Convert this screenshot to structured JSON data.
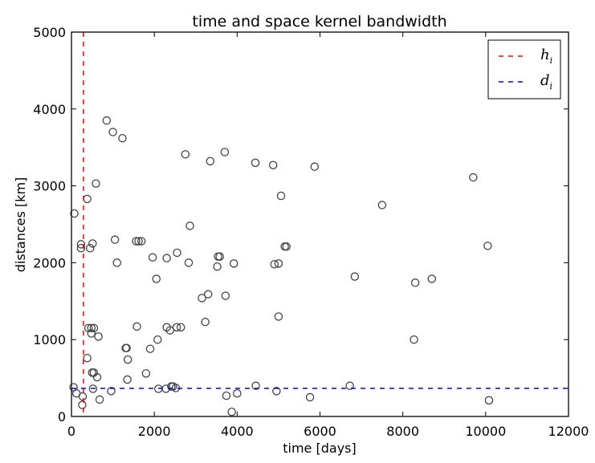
{
  "chart_data": {
    "type": "scatter",
    "title": "time and space kernel bandwidth",
    "xlabel": "time [days]",
    "ylabel": "distances [km]",
    "xlim": [
      0,
      12000
    ],
    "ylim": [
      0,
      5000
    ],
    "xticks": [
      0,
      2000,
      4000,
      6000,
      8000,
      10000,
      12000
    ],
    "yticks": [
      0,
      1000,
      2000,
      3000,
      4000,
      5000
    ],
    "grid": false,
    "legend_position": "top-right",
    "legend": [
      {
        "label": "h",
        "sub": "i",
        "color": "#ff0000",
        "style": "dashed"
      },
      {
        "label": "d",
        "sub": "i",
        "color": "#0000ff",
        "style": "dashed"
      }
    ],
    "h_i": 290,
    "d_i": 365,
    "marker_color": "#444444",
    "points": [
      [
        50,
        380
      ],
      [
        70,
        2640
      ],
      [
        120,
        300
      ],
      [
        230,
        2190
      ],
      [
        230,
        2240
      ],
      [
        270,
        260
      ],
      [
        260,
        150
      ],
      [
        380,
        2830
      ],
      [
        380,
        760
      ],
      [
        410,
        1150
      ],
      [
        450,
        2190
      ],
      [
        480,
        1150
      ],
      [
        480,
        1080
      ],
      [
        510,
        2250
      ],
      [
        500,
        570
      ],
      [
        520,
        360
      ],
      [
        540,
        570
      ],
      [
        540,
        1150
      ],
      [
        590,
        3030
      ],
      [
        620,
        510
      ],
      [
        650,
        1040
      ],
      [
        680,
        220
      ],
      [
        850,
        3850
      ],
      [
        960,
        330
      ],
      [
        1000,
        3700
      ],
      [
        1050,
        2300
      ],
      [
        1100,
        2000
      ],
      [
        1230,
        3620
      ],
      [
        1310,
        890
      ],
      [
        1330,
        890
      ],
      [
        1360,
        740
      ],
      [
        1350,
        480
      ],
      [
        1560,
        2280
      ],
      [
        1620,
        2280
      ],
      [
        1690,
        2280
      ],
      [
        1580,
        1170
      ],
      [
        1800,
        560
      ],
      [
        1900,
        880
      ],
      [
        1960,
        2070
      ],
      [
        2050,
        1790
      ],
      [
        2080,
        1000
      ],
      [
        2100,
        360
      ],
      [
        2280,
        360
      ],
      [
        2300,
        2060
      ],
      [
        2300,
        1160
      ],
      [
        2380,
        1120
      ],
      [
        2410,
        390
      ],
      [
        2450,
        390
      ],
      [
        2520,
        370
      ],
      [
        2540,
        1160
      ],
      [
        2550,
        2130
      ],
      [
        2640,
        1160
      ],
      [
        2750,
        3410
      ],
      [
        2830,
        2000
      ],
      [
        2860,
        2480
      ],
      [
        3150,
        1540
      ],
      [
        3230,
        1230
      ],
      [
        3300,
        1590
      ],
      [
        3350,
        3320
      ],
      [
        3520,
        1950
      ],
      [
        3540,
        2080
      ],
      [
        3580,
        2080
      ],
      [
        3700,
        3440
      ],
      [
        3720,
        1570
      ],
      [
        3740,
        270
      ],
      [
        3870,
        60
      ],
      [
        3920,
        1990
      ],
      [
        4000,
        300
      ],
      [
        4440,
        3300
      ],
      [
        4450,
        400
      ],
      [
        4870,
        3270
      ],
      [
        4900,
        1980
      ],
      [
        4950,
        330
      ],
      [
        5000,
        1990
      ],
      [
        5000,
        1300
      ],
      [
        5060,
        2870
      ],
      [
        5150,
        2210
      ],
      [
        5190,
        2210
      ],
      [
        5760,
        250
      ],
      [
        5870,
        3250
      ],
      [
        6720,
        400
      ],
      [
        6840,
        1820
      ],
      [
        7500,
        2750
      ],
      [
        8270,
        1000
      ],
      [
        8300,
        1740
      ],
      [
        8700,
        1790
      ],
      [
        9700,
        3110
      ],
      [
        10050,
        2220
      ],
      [
        10080,
        210
      ]
    ]
  }
}
